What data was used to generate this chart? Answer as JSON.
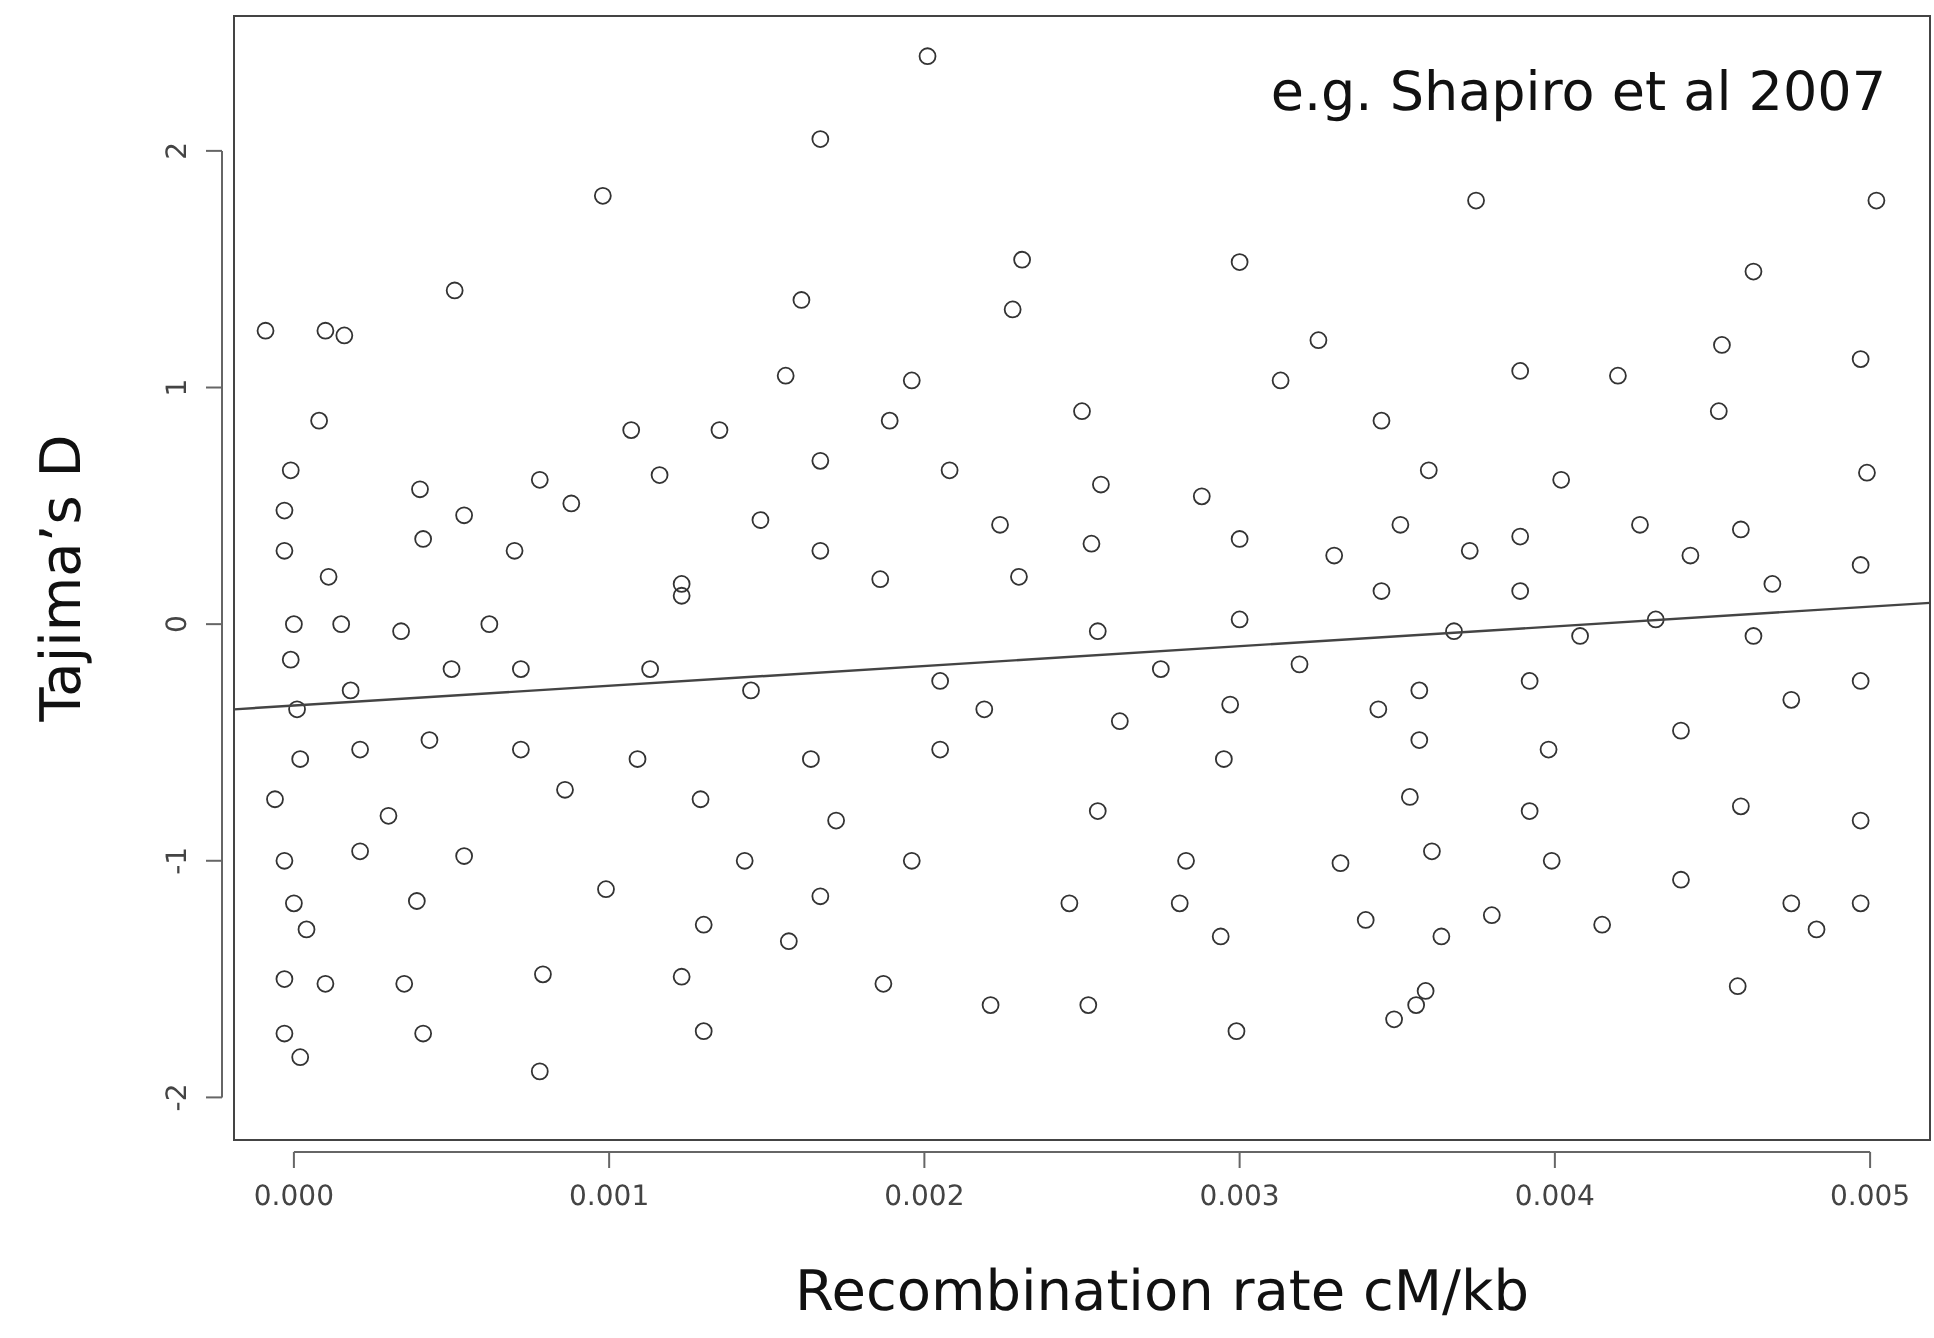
{
  "chart_data": {
    "type": "scatter",
    "xlabel": "Recombination rate cM/kb",
    "ylabel": "Tajima’s D",
    "annotations": [
      "e.g. Shapiro et al 2007"
    ],
    "xlim": [
      -0.00019,
      0.00519
    ],
    "ylim": [
      -2.18,
      2.57
    ],
    "xticks": [
      {
        "value": 0,
        "label": "0.000"
      },
      {
        "value": 0.001,
        "label": "0.001"
      },
      {
        "value": 0.002,
        "label": "0.002"
      },
      {
        "value": 0.003,
        "label": "0.003"
      },
      {
        "value": 0.004,
        "label": "0.004"
      },
      {
        "value": 0.005,
        "label": "0.005"
      }
    ],
    "yticks": [
      -2,
      -1,
      0,
      1,
      2
    ],
    "series": [
      {
        "marker": "circle",
        "color": "#333333",
        "x": [
          0.00201,
          0.00167,
          0.00098,
          0.00375,
          0.00502,
          0.00231,
          0.003,
          0.00463,
          0.00161,
          0.00051,
          -9e-05,
          0.0001,
          0.00016,
          0.00228,
          0.00325,
          0.00453,
          0.00156,
          0.00196,
          0.00313,
          0.00389,
          0.0042,
          0.00497,
          8e-05,
          0.00107,
          0.00135,
          0.00189,
          0.0025,
          0.00345,
          0.00452,
          -1e-05,
          0.0004,
          0.00078,
          0.00116,
          0.00167,
          0.00208,
          0.00256,
          0.00288,
          0.0036,
          0.00402,
          0.00499,
          -3e-05,
          0.00054,
          0.00088,
          0.00148,
          0.00224,
          0.003,
          0.00351,
          0.00389,
          0.00427,
          0.00459,
          -3e-05,
          0.00041,
          0.0007,
          0.00167,
          0.00253,
          0.0033,
          0.00373,
          0.00443,
          0.00497,
          0.00011,
          0.00123,
          0.00186,
          0.0023,
          0.00345,
          0.00389,
          0.00469,
          0,
          0.00015,
          0.00034,
          0.00062,
          0.00123,
          0.00255,
          0.003,
          0.00368,
          0.00408,
          0.00432,
          0.00463,
          -1e-05,
          0.0005,
          0.00205,
          0.00275,
          0.00319,
          0.00357,
          0.00392,
          0.00497,
          1e-05,
          0.00018,
          0.00072,
          0.00113,
          0.00145,
          0.00219,
          0.00297,
          0.00344,
          0.00475,
          2e-05,
          0.00021,
          0.00043,
          0.00072,
          0.00109,
          0.00164,
          0.00205,
          0.00262,
          0.00357,
          0.00398,
          0.0044,
          -6e-05,
          0.0003,
          0.00086,
          0.00129,
          0.00172,
          0.00255,
          0.00295,
          0.00354,
          0.00392,
          0.00459,
          0.00497,
          -3e-05,
          0.00021,
          0.00054,
          0.00143,
          0.00196,
          0.00283,
          0.00332,
          0.00361,
          0.00399,
          0.0044,
          0,
          0.00039,
          0.00099,
          0.00167,
          0.00246,
          0.00281,
          0.0034,
          0.0038,
          0.00415,
          0.00475,
          0.00497,
          4e-05,
          0.0013,
          0.00157,
          0.00294,
          0.00364,
          0.00483,
          -3e-05,
          0.0001,
          0.00035,
          0.00079,
          0.00123,
          0.00187,
          0.00221,
          0.00252,
          0.00356,
          0.00458,
          0.00359,
          -3e-05,
          2e-05,
          0.00041,
          0.0013,
          0.00299,
          0.00349,
          0.00078
        ],
        "values": [
          2.4,
          2.05,
          1.81,
          1.79,
          1.79,
          1.54,
          1.53,
          1.49,
          1.37,
          1.41,
          1.24,
          1.24,
          1.22,
          1.33,
          1.2,
          1.18,
          1.05,
          1.03,
          1.03,
          1.07,
          1.05,
          1.12,
          0.86,
          0.82,
          0.82,
          0.86,
          0.9,
          0.86,
          0.9,
          0.65,
          0.57,
          0.61,
          0.63,
          0.69,
          0.65,
          0.59,
          0.54,
          0.65,
          0.61,
          0.64,
          0.48,
          0.46,
          0.51,
          0.44,
          0.42,
          0.36,
          0.42,
          0.37,
          0.42,
          0.4,
          0.31,
          0.36,
          0.31,
          0.31,
          0.34,
          0.29,
          0.31,
          0.29,
          0.25,
          0.2,
          0.17,
          0.19,
          0.2,
          0.14,
          0.14,
          0.17,
          0,
          0,
          -0.03,
          0,
          0.12,
          -0.03,
          0.02,
          -0.03,
          -0.05,
          0.02,
          -0.05,
          -0.15,
          -0.19,
          -0.24,
          -0.19,
          -0.17,
          -0.28,
          -0.24,
          -0.24,
          -0.36,
          -0.28,
          -0.19,
          -0.19,
          -0.28,
          -0.36,
          -0.34,
          -0.36,
          -0.32,
          -0.57,
          -0.53,
          -0.49,
          -0.53,
          -0.57,
          -0.57,
          -0.53,
          -0.41,
          -0.49,
          -0.53,
          -0.45,
          -0.74,
          -0.81,
          -0.7,
          -0.74,
          -0.83,
          -0.79,
          -0.57,
          -0.73,
          -0.79,
          -0.77,
          -0.83,
          -1,
          -0.96,
          -0.98,
          -1,
          -1,
          -1,
          -1.01,
          -0.96,
          -1,
          -1.08,
          -1.18,
          -1.17,
          -1.12,
          -1.15,
          -1.18,
          -1.18,
          -1.25,
          -1.23,
          -1.27,
          -1.18,
          -1.18,
          -1.29,
          -1.27,
          -1.34,
          -1.32,
          -1.32,
          -1.29,
          -1.5,
          -1.52,
          -1.52,
          -1.48,
          -1.49,
          -1.52,
          -1.61,
          -1.61,
          -1.61,
          -1.53,
          -1.55,
          -1.73,
          -1.83,
          -1.73,
          -1.72,
          -1.72,
          -1.67,
          -1.89
        ]
      },
      {
        "type": "line",
        "marker": "none",
        "color": "#444444",
        "x": [
          -0.00019,
          0.00519
        ],
        "values": [
          -0.36,
          0.09
        ]
      }
    ]
  }
}
